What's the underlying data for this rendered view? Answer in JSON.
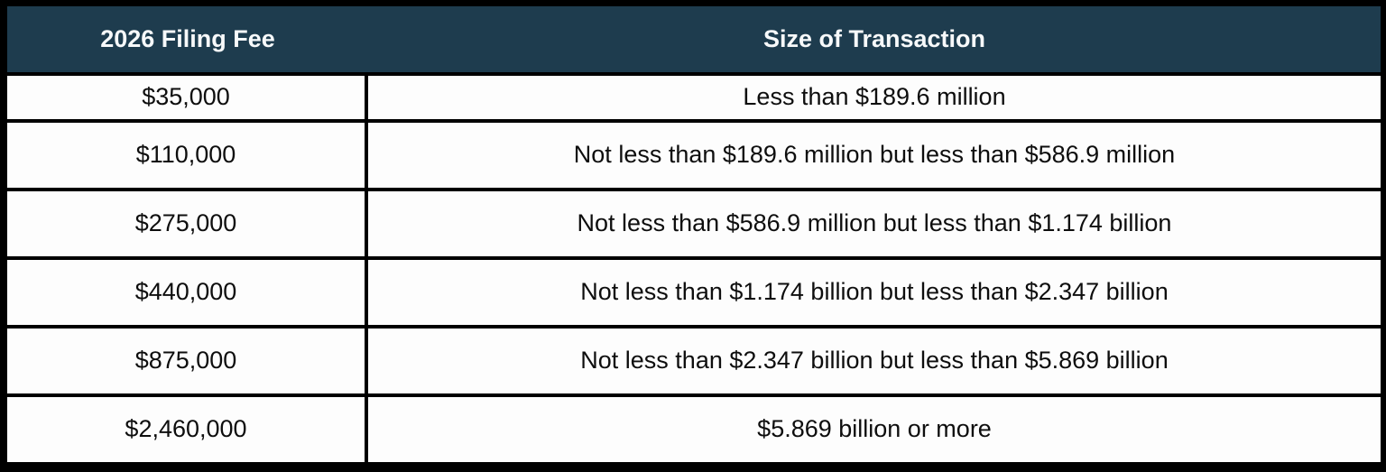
{
  "table": {
    "columns": [
      {
        "label": "2026 Filing Fee"
      },
      {
        "label": "Size of Transaction"
      }
    ],
    "rows": [
      {
        "fee": "$35,000",
        "size": "Less than $189.6 million"
      },
      {
        "fee": "$110,000",
        "size": "Not less than $189.6 million but less than $586.9 million"
      },
      {
        "fee": "$275,000",
        "size": "Not less than $586.9 million but less than $1.174 billion"
      },
      {
        "fee": "$440,000",
        "size": "Not less than $1.174 billion but less than $2.347 billion"
      },
      {
        "fee": "$875,000",
        "size": "Not less than $2.347 billion but less than $5.869 billion"
      },
      {
        "fee": "$2,460,000",
        "size": "$5.869 billion or more"
      }
    ],
    "colors": {
      "header_bg": "#1e3c4e",
      "header_text": "#f7f9fa",
      "border": "#000000",
      "row_bg": "#fdfdfd",
      "body_text": "#0e0e0e"
    }
  }
}
